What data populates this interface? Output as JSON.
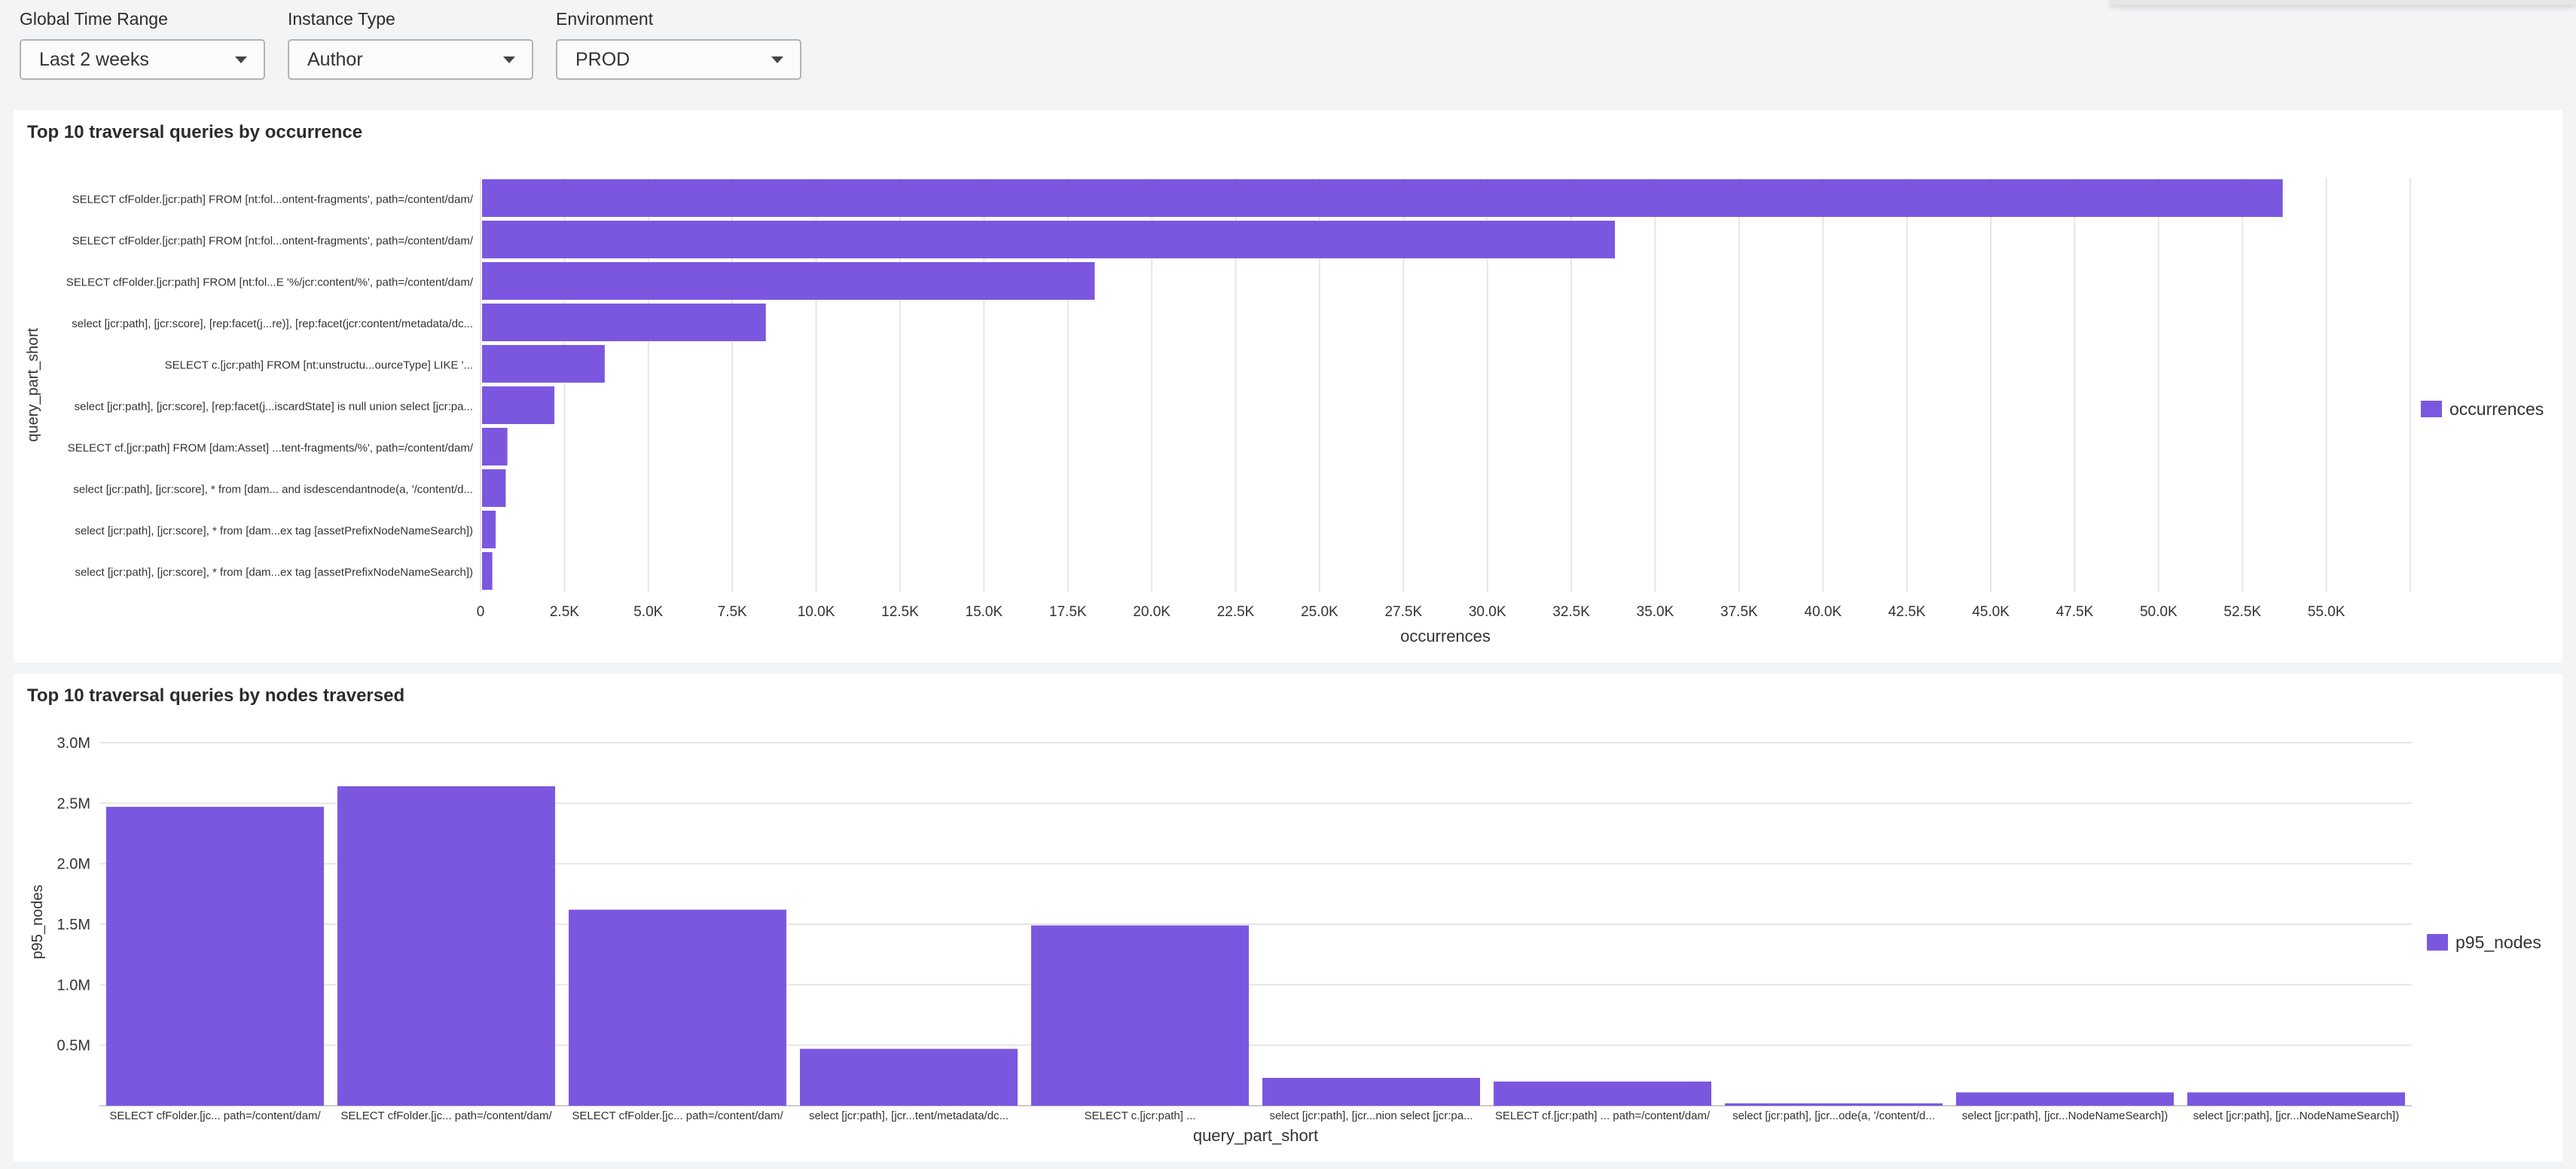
{
  "filters": [
    {
      "label": "Global Time Range",
      "value": "Last 2 weeks"
    },
    {
      "label": "Instance Type",
      "value": "Author"
    },
    {
      "label": "Environment",
      "value": "PROD"
    }
  ],
  "colors": {
    "bar": "#7b57e0",
    "grid": "#e6e6e6",
    "axis_text": "#333333"
  },
  "chart_data": [
    {
      "type": "bar",
      "orientation": "horizontal",
      "title": "Top 10 traversal queries by occurrence",
      "xlabel": "occurrences",
      "ylabel": "query_part_short",
      "legend": {
        "entries": [
          "occurrences"
        ],
        "placement": "right"
      },
      "grid": true,
      "xlim": [
        0,
        57500
      ],
      "x_ticks": [
        "0",
        "2.5K",
        "5.0K",
        "7.5K",
        "10.0K",
        "12.5K",
        "15.0K",
        "17.5K",
        "20.0K",
        "22.5K",
        "25.0K",
        "27.5K",
        "30.0K",
        "32.5K",
        "35.0K",
        "37.5K",
        "40.0K",
        "42.5K",
        "45.0K",
        "47.5K",
        "50.0K",
        "52.5K",
        "55.0K"
      ],
      "categories": [
        "SELECT cfFolder.[jcr:path] FROM [nt:fol...ontent-fragments', path=/content/dam/",
        "SELECT cfFolder.[jcr:path] FROM [nt:fol...ontent-fragments', path=/content/dam/",
        "SELECT cfFolder.[jcr:path] FROM [nt:fol...E '%/jcr:content/%', path=/content/dam/",
        "select [jcr:path], [jcr:score], [rep:facet(j...re)], [rep:facet(jcr:content/metadata/dc...",
        "SELECT c.[jcr:path] FROM [nt:unstructu...ourceType] LIKE '...",
        "select [jcr:path], [jcr:score], [rep:facet(j...iscardState] is null union select [jcr:pa...",
        "SELECT cf.[jcr:path] FROM [dam:Asset] ...tent-fragments/%', path=/content/dam/",
        "select [jcr:path], [jcr:score], * from [dam... and isdescendantnode(a, '/content/d...",
        "select [jcr:path], [jcr:score], * from [dam...ex tag [assetPrefixNodeNameSearch])",
        "select [jcr:path], [jcr:score], * from [dam...ex tag [assetPrefixNodeNameSearch])"
      ],
      "series": [
        {
          "name": "occurrences",
          "values": [
            53700,
            33800,
            18300,
            8500,
            3700,
            2200,
            800,
            750,
            450,
            350
          ]
        }
      ]
    },
    {
      "type": "bar",
      "orientation": "vertical",
      "title": "Top 10 traversal queries by nodes traversed",
      "xlabel": "query_part_short",
      "ylabel": "p95_nodes",
      "legend": {
        "entries": [
          "p95_nodes"
        ],
        "placement": "right"
      },
      "grid": true,
      "ylim": [
        0,
        3000000
      ],
      "y_ticks": [
        "0.5M",
        "1.0M",
        "1.5M",
        "2.0M",
        "2.5M",
        "3.0M"
      ],
      "categories": [
        "SELECT cfFolder.[jc... path=/content/dam/",
        "SELECT cfFolder.[jc... path=/content/dam/",
        "SELECT cfFolder.[jc... path=/content/dam/",
        "select [jcr:path], [jcr...tent/metadata/dc...",
        "SELECT c.[jcr:path] ...",
        "select [jcr:path], [jcr...nion select [jcr:pa...",
        "SELECT cf.[jcr:path] ... path=/content/dam/",
        "select [jcr:path], [jcr...ode(a, '/content/d...",
        "select [jcr:path], [jcr...NodeNameSearch])",
        "select [jcr:path], [jcr...NodeNameSearch])"
      ],
      "series": [
        {
          "name": "p95_nodes",
          "values": [
            2470000,
            2640000,
            1620000,
            470000,
            1490000,
            230000,
            200000,
            20000,
            110000,
            110000
          ]
        }
      ]
    }
  ]
}
